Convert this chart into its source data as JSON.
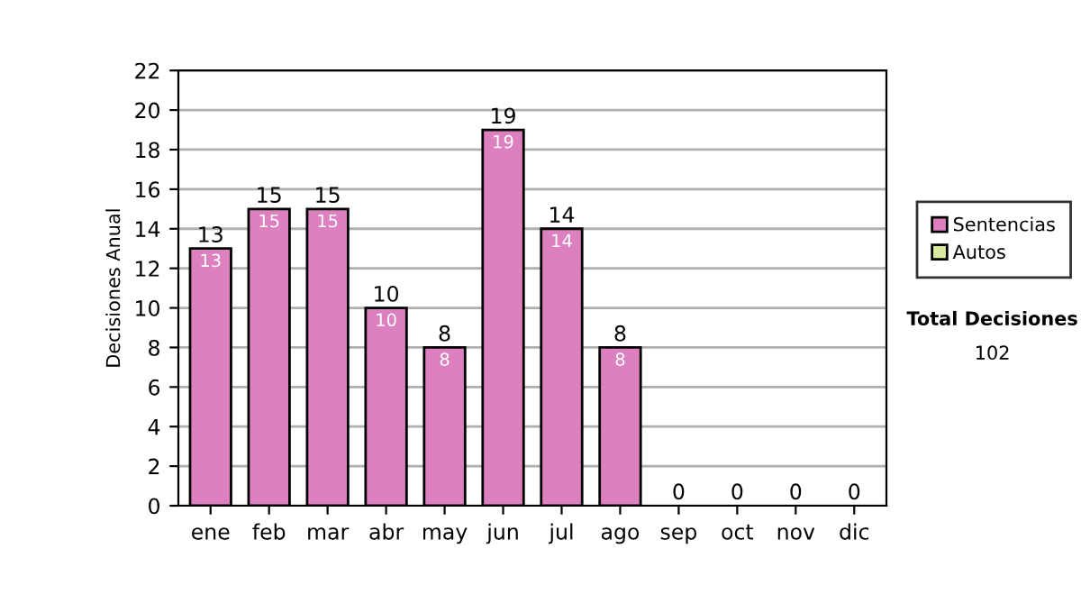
{
  "chart_data": {
    "type": "bar",
    "stacked": true,
    "ylabel": "Decisiones Anual",
    "categories": [
      "ene",
      "feb",
      "mar",
      "abr",
      "may",
      "jun",
      "jul",
      "ago",
      "sep",
      "oct",
      "nov",
      "dic"
    ],
    "series": [
      {
        "name": "Sentencias",
        "color": "#dd80c0",
        "values": [
          13,
          15,
          15,
          10,
          8,
          19,
          14,
          8,
          0,
          0,
          0,
          0
        ],
        "value_labels": [
          "13",
          "15",
          "15",
          "10",
          "8",
          "19",
          "14",
          "8",
          null,
          null,
          null,
          null
        ]
      },
      {
        "name": "Autos",
        "color": "#d8eaa0",
        "values": [
          0,
          0,
          0,
          0,
          0,
          0,
          0,
          0,
          0,
          0,
          0,
          0
        ]
      }
    ],
    "totals": [
      "13",
      "15",
      "15",
      "10",
      "8",
      "19",
      "14",
      "8",
      "0",
      "0",
      "0",
      "0"
    ],
    "ylim": [
      0,
      22
    ],
    "yticks": [
      0,
      2,
      4,
      6,
      8,
      10,
      12,
      14,
      16,
      18,
      20,
      22
    ],
    "grid": "y",
    "legend": "right",
    "annotations": [
      "Total Decisiones",
      "102"
    ]
  }
}
